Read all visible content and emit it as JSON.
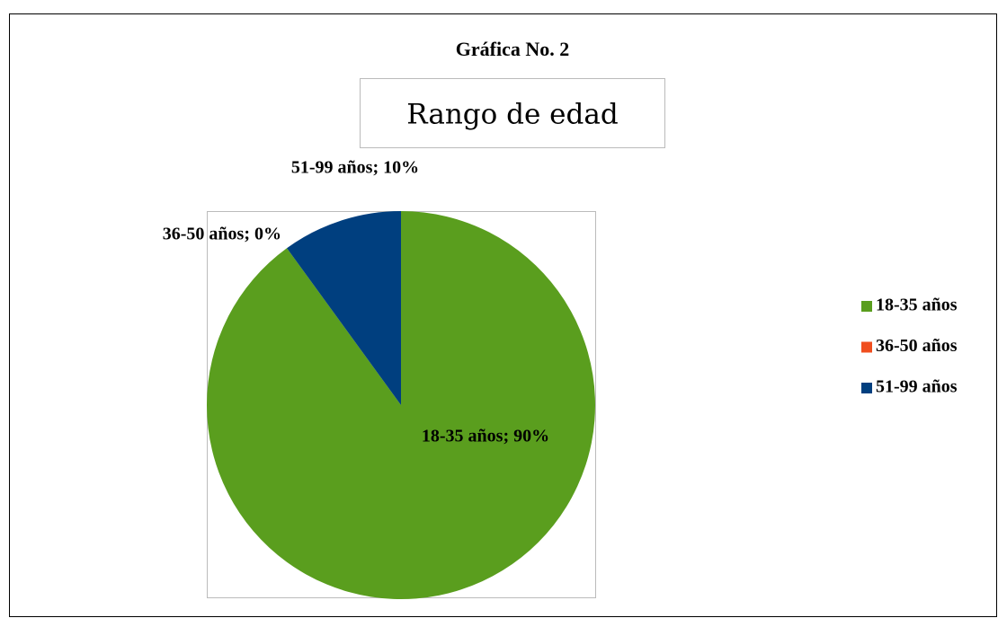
{
  "chart_data": {
    "type": "pie",
    "title": "Gráfica No. 2",
    "subtitle": "Rango de edad",
    "categories": [
      "18-35 años",
      "36-50 años",
      "51-99 años"
    ],
    "values": [
      90,
      0,
      10
    ],
    "value_labels": [
      "18-35 años; 90%",
      "36-50 años; 0%",
      "51-99 años; 10%"
    ],
    "colors": [
      "#5a9e1e",
      "#f04e1e",
      "#003f7f"
    ],
    "legend": "right"
  }
}
